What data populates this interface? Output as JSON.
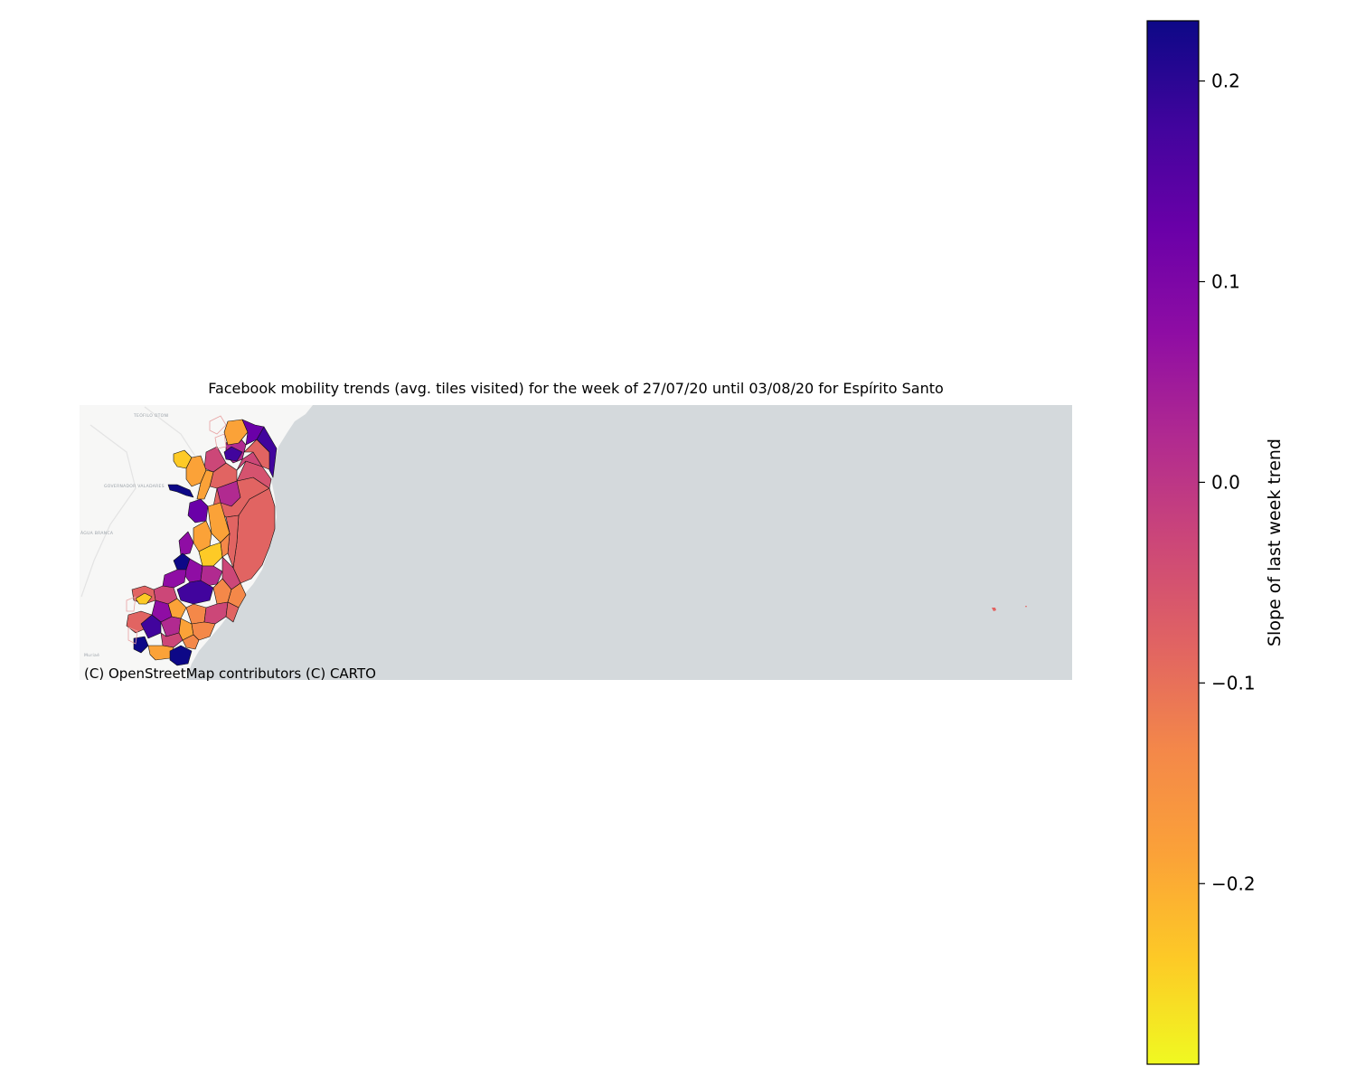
{
  "title": "Facebook mobility trends (avg. tiles visited) for the week of 27/07/20 until 03/08/20 for Espírito Santo",
  "attribution": "(C) OpenStreetMap contributors (C) CARTO",
  "basemap": {
    "land_color": "#f7f7f6",
    "sea_color": "#d4d9dc",
    "place_labels": [
      "TEÓFILO OTONI",
      "GOVERNADOR VALADARES",
      "ÁGUA BRANCA",
      "Muriaé"
    ]
  },
  "colorbar": {
    "label": "Slope of last week trend",
    "colormap": "plasma_r",
    "min": -0.29,
    "max": 0.23,
    "ticks": [
      {
        "value": 0.2,
        "label": "0.2"
      },
      {
        "value": 0.1,
        "label": "0.1"
      },
      {
        "value": 0.0,
        "label": "0.0"
      },
      {
        "value": -0.1,
        "label": "−0.1"
      },
      {
        "value": -0.2,
        "label": "−0.2"
      }
    ]
  },
  "chart_data": {
    "type": "choropleth",
    "region": "Espírito Santo",
    "value_range": [
      -0.29,
      0.23
    ]
  }
}
